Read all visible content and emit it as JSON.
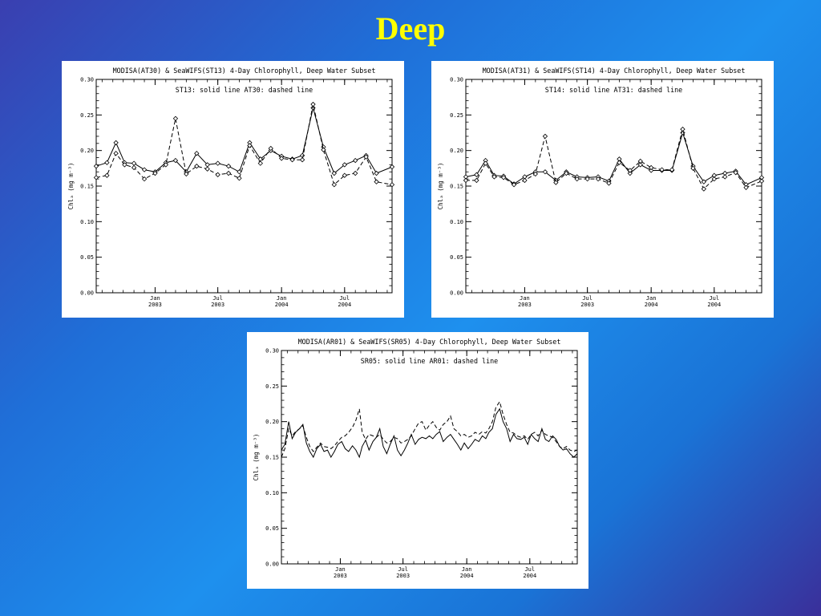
{
  "slide": {
    "title": "Deep"
  },
  "chart_data": [
    {
      "type": "line",
      "title": "MODISA(AT30) & SeaWIFS(ST13) 4-Day Chlorophyll, Deep Water Subset",
      "annotation": "ST13: solid line    AT30: dashed line",
      "ylabel": "Chlₐ (mg m⁻³)",
      "ylim": [
        0,
        0.3
      ],
      "yticks": [
        "0.00",
        "0.05",
        "0.10",
        "0.15",
        "0.20",
        "0.25",
        "0.30"
      ],
      "xlim": [
        "2002-07-15",
        "2004-11-15"
      ],
      "xticks": [
        {
          "date": "2003-01-01",
          "l1": "Jan",
          "l2": "2003"
        },
        {
          "date": "2003-07-01",
          "l1": "Jul",
          "l2": "2003"
        },
        {
          "date": "2004-01-01",
          "l1": "Jan",
          "l2": "2004"
        },
        {
          "date": "2004-07-01",
          "l1": "Jul",
          "l2": "2004"
        }
      ],
      "markers": true,
      "x": [
        "2002-07-15",
        "2002-08-15",
        "2002-09-10",
        "2002-10-05",
        "2002-11-01",
        "2002-12-01",
        "2003-01-01",
        "2003-02-01",
        "2003-03-01",
        "2003-04-01",
        "2003-05-01",
        "2003-06-01",
        "2003-07-01",
        "2003-08-01",
        "2003-09-01",
        "2003-10-01",
        "2003-11-01",
        "2003-12-01",
        "2004-01-01",
        "2004-02-01",
        "2004-03-01",
        "2004-04-01",
        "2004-05-01",
        "2004-06-01",
        "2004-07-01",
        "2004-08-01",
        "2004-09-01",
        "2004-10-01",
        "2004-11-15"
      ],
      "series": [
        {
          "name": "ST13",
          "dash": false,
          "values": [
            0.178,
            0.183,
            0.211,
            0.183,
            0.182,
            0.173,
            0.17,
            0.183,
            0.186,
            0.17,
            0.196,
            0.18,
            0.182,
            0.178,
            0.17,
            0.211,
            0.188,
            0.2,
            0.192,
            0.188,
            0.193,
            0.26,
            0.205,
            0.168,
            0.18,
            0.186,
            0.193,
            0.168,
            0.177
          ]
        },
        {
          "name": "AT30",
          "dash": true,
          "values": [
            0.162,
            0.165,
            0.196,
            0.18,
            0.176,
            0.16,
            0.168,
            0.18,
            0.245,
            0.167,
            0.178,
            0.174,
            0.166,
            0.168,
            0.161,
            0.207,
            0.182,
            0.203,
            0.189,
            0.187,
            0.187,
            0.265,
            0.201,
            0.152,
            0.165,
            0.168,
            0.191,
            0.156,
            0.152
          ]
        }
      ]
    },
    {
      "type": "line",
      "title": "MODISA(AT31) & SeaWIFS(ST14) 4-Day Chlorophyll, Deep Water Subset",
      "annotation": "ST14: solid line    AT31: dashed line",
      "ylabel": "Chlₐ (mg m⁻³)",
      "ylim": [
        0,
        0.3
      ],
      "yticks": [
        "0.00",
        "0.05",
        "0.10",
        "0.15",
        "0.20",
        "0.25",
        "0.30"
      ],
      "xlim": [
        "2002-07-15",
        "2004-11-15"
      ],
      "xticks": [
        {
          "date": "2003-01-01",
          "l1": "Jan",
          "l2": "2003"
        },
        {
          "date": "2003-07-01",
          "l1": "Jul",
          "l2": "2003"
        },
        {
          "date": "2004-01-01",
          "l1": "Jan",
          "l2": "2004"
        },
        {
          "date": "2004-07-01",
          "l1": "Jul",
          "l2": "2004"
        }
      ],
      "markers": true,
      "x": [
        "2002-07-15",
        "2002-08-15",
        "2002-09-10",
        "2002-10-05",
        "2002-11-01",
        "2002-12-01",
        "2003-01-01",
        "2003-02-01",
        "2003-03-01",
        "2003-04-01",
        "2003-05-01",
        "2003-06-01",
        "2003-07-01",
        "2003-08-01",
        "2003-09-01",
        "2003-10-01",
        "2003-11-01",
        "2003-12-01",
        "2004-01-01",
        "2004-02-01",
        "2004-03-01",
        "2004-04-01",
        "2004-05-01",
        "2004-06-01",
        "2004-07-01",
        "2004-08-01",
        "2004-09-01",
        "2004-10-01",
        "2004-11-15"
      ],
      "series": [
        {
          "name": "ST14",
          "dash": false,
          "values": [
            0.163,
            0.166,
            0.186,
            0.165,
            0.164,
            0.153,
            0.163,
            0.17,
            0.17,
            0.158,
            0.17,
            0.163,
            0.162,
            0.163,
            0.157,
            0.188,
            0.168,
            0.18,
            0.172,
            0.172,
            0.172,
            0.225,
            0.178,
            0.156,
            0.165,
            0.168,
            0.171,
            0.152,
            0.162
          ]
        },
        {
          "name": "AT31",
          "dash": true,
          "values": [
            0.158,
            0.158,
            0.182,
            0.163,
            0.162,
            0.152,
            0.158,
            0.167,
            0.22,
            0.155,
            0.168,
            0.16,
            0.16,
            0.16,
            0.154,
            0.183,
            0.172,
            0.185,
            0.176,
            0.173,
            0.173,
            0.23,
            0.175,
            0.146,
            0.16,
            0.163,
            0.169,
            0.148,
            0.157
          ]
        }
      ]
    },
    {
      "type": "line",
      "title": "MODISA(AR01) & SeaWIFS(SR05) 4-Day Chlorophyll, Deep Water Subset",
      "annotation": "SR05: solid line    AR01: dashed line",
      "ylabel": "Chlₐ (mg m⁻³)",
      "ylim": [
        0,
        0.3
      ],
      "yticks": [
        "0.00",
        "0.05",
        "0.10",
        "0.15",
        "0.20",
        "0.25",
        "0.30"
      ],
      "xlim": [
        "2002-07-15",
        "2004-11-15"
      ],
      "xticks": [
        {
          "date": "2003-01-01",
          "l1": "Jan",
          "l2": "2003"
        },
        {
          "date": "2003-07-01",
          "l1": "Jul",
          "l2": "2003"
        },
        {
          "date": "2004-01-01",
          "l1": "Jan",
          "l2": "2004"
        },
        {
          "date": "2004-07-01",
          "l1": "Jul",
          "l2": "2004"
        }
      ],
      "markers": false,
      "x": [
        "2002-07-15",
        "2002-07-25",
        "2002-08-05",
        "2002-08-15",
        "2002-08-25",
        "2002-09-05",
        "2002-09-15",
        "2002-09-25",
        "2002-10-05",
        "2002-10-15",
        "2002-10-25",
        "2002-11-05",
        "2002-11-15",
        "2002-11-25",
        "2002-12-05",
        "2002-12-15",
        "2002-12-25",
        "2003-01-05",
        "2003-01-15",
        "2003-01-25",
        "2003-02-05",
        "2003-02-15",
        "2003-02-25",
        "2003-03-05",
        "2003-03-15",
        "2003-03-25",
        "2003-04-05",
        "2003-04-15",
        "2003-04-25",
        "2003-05-05",
        "2003-05-15",
        "2003-05-25",
        "2003-06-05",
        "2003-06-15",
        "2003-06-25",
        "2003-07-05",
        "2003-07-15",
        "2003-07-25",
        "2003-08-05",
        "2003-08-15",
        "2003-08-25",
        "2003-09-05",
        "2003-09-15",
        "2003-09-25",
        "2003-10-05",
        "2003-10-15",
        "2003-10-25",
        "2003-11-05",
        "2003-11-15",
        "2003-11-25",
        "2003-12-05",
        "2003-12-15",
        "2003-12-25",
        "2004-01-05",
        "2004-01-15",
        "2004-01-25",
        "2004-02-05",
        "2004-02-15",
        "2004-02-25",
        "2004-03-05",
        "2004-03-15",
        "2004-03-25",
        "2004-04-05",
        "2004-04-15",
        "2004-04-25",
        "2004-05-05",
        "2004-05-15",
        "2004-05-25",
        "2004-06-05",
        "2004-06-15",
        "2004-06-25",
        "2004-07-05",
        "2004-07-15",
        "2004-07-25",
        "2004-08-05",
        "2004-08-15",
        "2004-08-25",
        "2004-09-05",
        "2004-09-15",
        "2004-09-25",
        "2004-10-05",
        "2004-10-15",
        "2004-10-25",
        "2004-11-05",
        "2004-11-15"
      ],
      "series": [
        {
          "name": "SR05",
          "dash": false,
          "values": [
            0.16,
            0.168,
            0.2,
            0.176,
            0.185,
            0.19,
            0.196,
            0.17,
            0.158,
            0.15,
            0.162,
            0.168,
            0.158,
            0.16,
            0.15,
            0.158,
            0.168,
            0.172,
            0.162,
            0.158,
            0.166,
            0.16,
            0.15,
            0.165,
            0.174,
            0.16,
            0.172,
            0.178,
            0.19,
            0.165,
            0.155,
            0.168,
            0.18,
            0.16,
            0.152,
            0.16,
            0.17,
            0.182,
            0.168,
            0.175,
            0.178,
            0.176,
            0.18,
            0.176,
            0.182,
            0.186,
            0.172,
            0.178,
            0.182,
            0.175,
            0.168,
            0.16,
            0.17,
            0.162,
            0.168,
            0.175,
            0.172,
            0.18,
            0.176,
            0.185,
            0.19,
            0.21,
            0.218,
            0.2,
            0.19,
            0.172,
            0.182,
            0.176,
            0.175,
            0.178,
            0.168,
            0.182,
            0.176,
            0.172,
            0.19,
            0.175,
            0.172,
            0.18,
            0.175,
            0.165,
            0.16,
            0.162,
            0.155,
            0.15,
            0.155
          ]
        },
        {
          "name": "AR01",
          "dash": true,
          "values": [
            0.15,
            0.162,
            0.19,
            0.18,
            0.186,
            0.19,
            0.194,
            0.178,
            0.165,
            0.158,
            0.164,
            0.17,
            0.165,
            0.164,
            0.162,
            0.166,
            0.172,
            0.178,
            0.18,
            0.185,
            0.192,
            0.202,
            0.218,
            0.185,
            0.175,
            0.182,
            0.18,
            0.178,
            0.182,
            0.175,
            0.17,
            0.172,
            0.178,
            0.176,
            0.17,
            0.172,
            0.175,
            0.18,
            0.19,
            0.198,
            0.2,
            0.188,
            0.195,
            0.2,
            0.192,
            0.188,
            0.196,
            0.2,
            0.208,
            0.19,
            0.186,
            0.18,
            0.182,
            0.178,
            0.18,
            0.185,
            0.182,
            0.186,
            0.184,
            0.19,
            0.2,
            0.22,
            0.228,
            0.21,
            0.196,
            0.185,
            0.184,
            0.18,
            0.178,
            0.18,
            0.175,
            0.182,
            0.185,
            0.18,
            0.188,
            0.182,
            0.18,
            0.178,
            0.172,
            0.165,
            0.162,
            0.165,
            0.16,
            0.158,
            0.16
          ]
        }
      ]
    }
  ]
}
